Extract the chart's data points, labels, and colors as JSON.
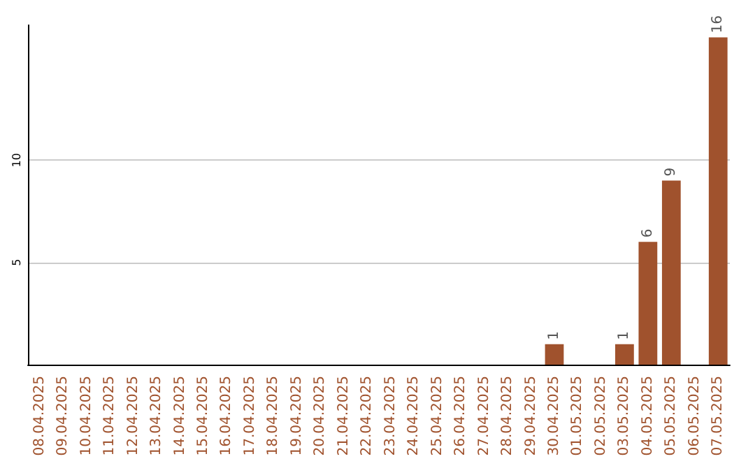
{
  "chart_data": {
    "type": "bar",
    "categories": [
      "08.04.2025",
      "09.04.2025",
      "10.04.2025",
      "11.04.2025",
      "12.04.2025",
      "13.04.2025",
      "14.04.2025",
      "15.04.2025",
      "16.04.2025",
      "17.04.2025",
      "18.04.2025",
      "19.04.2025",
      "20.04.2025",
      "21.04.2025",
      "22.04.2025",
      "23.04.2025",
      "24.04.2025",
      "25.04.2025",
      "26.04.2025",
      "27.04.2025",
      "28.04.2025",
      "29.04.2025",
      "30.04.2025",
      "01.05.2025",
      "02.05.2025",
      "03.05.2025",
      "04.05.2025",
      "05.05.2025",
      "06.05.2025",
      "07.05.2025"
    ],
    "values": [
      0,
      0,
      0,
      0,
      0,
      0,
      0,
      0,
      0,
      0,
      0,
      0,
      0,
      0,
      0,
      0,
      0,
      0,
      0,
      0,
      0,
      0,
      1,
      0,
      0,
      1,
      6,
      9,
      0,
      16
    ],
    "value_labels": [
      null,
      null,
      null,
      null,
      null,
      null,
      null,
      null,
      null,
      null,
      null,
      null,
      null,
      null,
      null,
      null,
      null,
      null,
      null,
      null,
      null,
      null,
      "1",
      null,
      null,
      "1",
      "6",
      "9",
      null,
      "16"
    ],
    "color": "#a0522d",
    "ylim": [
      0,
      16.6
    ],
    "yticks": [
      5,
      10
    ],
    "grid": "y"
  }
}
